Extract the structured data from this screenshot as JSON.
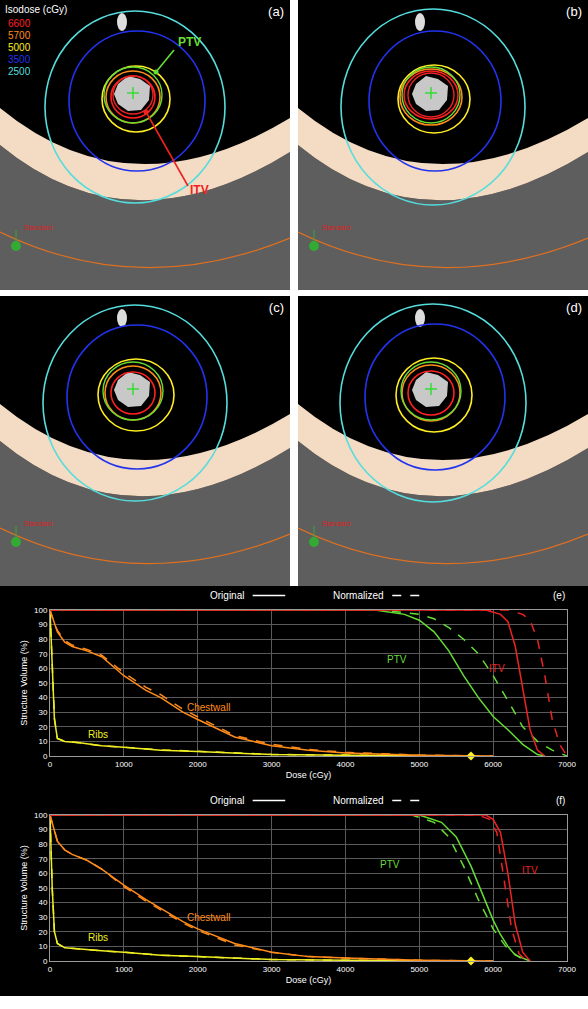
{
  "image_panels": {
    "isodose_legend": {
      "title": "Isodose (cGy)",
      "levels": [
        {
          "value": 6600,
          "color": "#ff2020"
        },
        {
          "value": 5700,
          "color": "#ff8c1a"
        },
        {
          "value": 5000,
          "color": "#ffee22"
        },
        {
          "value": 3500,
          "color": "#2233ee"
        },
        {
          "value": 2500,
          "color": "#55dddd"
        }
      ]
    },
    "panels": [
      {
        "label": "(a)",
        "overlay_label": "Standard",
        "annotations": [
          {
            "text": "PTV",
            "color": "#66dd33"
          },
          {
            "text": "ITV",
            "color": "#ee2222"
          }
        ]
      },
      {
        "label": "(b)",
        "overlay_label": "Standard"
      },
      {
        "label": "(c)",
        "overlay_label": "Standard"
      },
      {
        "label": "(d)",
        "overlay_label": "Standard"
      }
    ]
  },
  "chart_data": [
    {
      "type": "line",
      "panel_label": "(e)",
      "xlabel": "Dose (cGy)",
      "ylabel": "Structure Volume (%)",
      "xlim": [
        0,
        7000
      ],
      "ylim": [
        0,
        100
      ],
      "xticks": [
        0,
        1000,
        2000,
        3000,
        4000,
        5000,
        6000,
        7000
      ],
      "yticks": [
        0,
        10,
        20,
        30,
        40,
        50,
        60,
        70,
        80,
        90,
        100
      ],
      "grid": true,
      "legend": "top",
      "legend_items": [
        {
          "label": "Original",
          "line_style": "solid"
        },
        {
          "label": "Normalized",
          "line_style": "dashed"
        }
      ],
      "series": [
        {
          "name": "Ribs",
          "group": "Original",
          "color": "#eeee22",
          "line_style": "solid",
          "x": [
            0,
            30,
            60,
            100,
            200,
            400,
            700,
            1000,
            1500,
            2000,
            2500,
            3000,
            4000,
            5000,
            5700
          ],
          "values": [
            100,
            60,
            25,
            12,
            10,
            9,
            7,
            6,
            4,
            3,
            2,
            1,
            0.5,
            0.2,
            0
          ]
        },
        {
          "name": "Ribs",
          "group": "Normalized",
          "color": "#eeee22",
          "line_style": "dashed",
          "x": [
            0,
            30,
            60,
            100,
            200,
            400,
            700,
            1000,
            1500,
            2000,
            2500,
            3000,
            4000,
            5000,
            5700
          ],
          "values": [
            100,
            60,
            26,
            12,
            10,
            9,
            7,
            6,
            4.2,
            3.2,
            2.2,
            1.1,
            0.6,
            0.2,
            0
          ]
        },
        {
          "name": "Chestwall",
          "group": "Original",
          "color": "#ff8c1a",
          "line_style": "solid",
          "x": [
            0,
            50,
            100,
            200,
            300,
            500,
            700,
            1000,
            1300,
            1500,
            1800,
            2000,
            2500,
            3000,
            3500,
            4000,
            5000,
            6000
          ],
          "values": [
            100,
            92,
            85,
            78,
            75,
            72,
            68,
            55,
            45,
            40,
            30,
            25,
            13,
            7,
            4,
            2,
            0.5,
            0
          ]
        },
        {
          "name": "Chestwall",
          "group": "Normalized",
          "color": "#ff8c1a",
          "line_style": "dashed",
          "x": [
            0,
            50,
            100,
            200,
            300,
            500,
            700,
            1000,
            1300,
            1500,
            1800,
            2000,
            2500,
            3000,
            3500,
            4000,
            5000,
            6000
          ],
          "values": [
            100,
            92,
            86,
            79,
            76,
            73,
            69,
            57,
            47,
            42,
            32,
            27,
            14,
            8,
            4.5,
            2.5,
            0.6,
            0
          ]
        },
        {
          "name": "PTV",
          "group": "Original",
          "color": "#66dd33",
          "line_style": "solid",
          "x": [
            0,
            4400,
            4800,
            5000,
            5200,
            5400,
            5600,
            5800,
            6000,
            6200,
            6400,
            6600,
            6700
          ],
          "values": [
            100,
            100,
            97,
            93,
            85,
            72,
            55,
            40,
            27,
            18,
            8,
            1,
            0
          ]
        },
        {
          "name": "PTV",
          "group": "Normalized",
          "color": "#66dd33",
          "line_style": "dashed",
          "x": [
            0,
            4500,
            5000,
            5200,
            5400,
            5600,
            5800,
            6000,
            6200,
            6400,
            6600,
            6800,
            7000
          ],
          "values": [
            100,
            100,
            97,
            94,
            88,
            80,
            70,
            55,
            38,
            20,
            10,
            4,
            0
          ]
        },
        {
          "name": "ITV",
          "group": "Original",
          "color": "#ee2222",
          "line_style": "solid",
          "x": [
            0,
            5900,
            6100,
            6200,
            6300,
            6400,
            6500,
            6600,
            6700
          ],
          "values": [
            100,
            100,
            97,
            92,
            75,
            45,
            18,
            4,
            0
          ]
        },
        {
          "name": "ITV",
          "group": "Normalized",
          "color": "#ee2222",
          "line_style": "dashed",
          "x": [
            0,
            6200,
            6400,
            6500,
            6600,
            6700,
            6800,
            6900,
            7000
          ],
          "values": [
            100,
            100,
            97,
            93,
            80,
            55,
            25,
            8,
            0
          ]
        }
      ],
      "annotations": [
        {
          "text": "Ribs",
          "x": 650,
          "y": 15,
          "color": "#eeee22"
        },
        {
          "text": "Chestwall",
          "x": 2150,
          "y": 33,
          "color": "#ff8c1a"
        },
        {
          "text": "PTV",
          "x": 4700,
          "y": 66,
          "color": "#66dd33"
        },
        {
          "text": "ITV",
          "x": 6050,
          "y": 60,
          "color": "#ee2222"
        }
      ],
      "reference_point": {
        "x": 5700,
        "y": 0,
        "color": "#ffee22",
        "marker": "diamond"
      }
    },
    {
      "type": "line",
      "panel_label": "(f)",
      "xlabel": "Dose (cGy)",
      "ylabel": "Structure Volume (%)",
      "xlim": [
        0,
        7000
      ],
      "ylim": [
        0,
        100
      ],
      "xticks": [
        0,
        1000,
        2000,
        3000,
        4000,
        5000,
        6000,
        7000
      ],
      "yticks": [
        0,
        10,
        20,
        30,
        40,
        50,
        60,
        70,
        80,
        90,
        100
      ],
      "grid": true,
      "legend": "top",
      "legend_items": [
        {
          "label": "Original",
          "line_style": "solid"
        },
        {
          "label": "Normalized",
          "line_style": "dashed"
        }
      ],
      "series": [
        {
          "name": "Ribs",
          "group": "Original",
          "color": "#eeee22",
          "line_style": "solid",
          "x": [
            0,
            30,
            60,
            100,
            200,
            400,
            700,
            1000,
            1500,
            2000,
            2500,
            3000,
            4000,
            5000,
            5700
          ],
          "values": [
            100,
            50,
            20,
            12,
            9,
            8,
            7,
            6,
            4,
            3,
            2,
            1,
            0.5,
            0.2,
            0
          ]
        },
        {
          "name": "Ribs",
          "group": "Normalized",
          "color": "#eeee22",
          "line_style": "dashed",
          "x": [
            0,
            30,
            60,
            100,
            200,
            400,
            700,
            1000,
            1500,
            2000,
            2500,
            3000,
            4000,
            5000,
            5700
          ],
          "values": [
            100,
            50,
            20,
            12,
            9,
            8,
            7,
            6,
            4,
            3,
            2,
            1,
            0.5,
            0.2,
            0
          ]
        },
        {
          "name": "Chestwall",
          "group": "Original",
          "color": "#ff8c1a",
          "line_style": "solid",
          "x": [
            0,
            50,
            100,
            200,
            300,
            500,
            700,
            1000,
            1300,
            1500,
            1800,
            2000,
            2500,
            3000,
            3500,
            4000,
            5000,
            6000
          ],
          "values": [
            100,
            90,
            82,
            76,
            73,
            69,
            63,
            52,
            42,
            36,
            27,
            22,
            12,
            6,
            3,
            2,
            0.5,
            0
          ]
        },
        {
          "name": "Chestwall",
          "group": "Normalized",
          "color": "#ff8c1a",
          "line_style": "dashed",
          "x": [
            0,
            50,
            100,
            200,
            300,
            500,
            700,
            1000,
            1300,
            1500,
            1800,
            2000,
            2500,
            3000,
            3500,
            4000,
            5000,
            6000
          ],
          "values": [
            100,
            90,
            82,
            76,
            73,
            69,
            63,
            51,
            41,
            35,
            26,
            21,
            11,
            6,
            3,
            2,
            0.5,
            0
          ]
        },
        {
          "name": "PTV",
          "group": "Original",
          "color": "#66dd33",
          "line_style": "solid",
          "x": [
            0,
            5000,
            5300,
            5500,
            5700,
            5900,
            6000,
            6100,
            6200,
            6300,
            6500
          ],
          "values": [
            100,
            100,
            95,
            85,
            65,
            40,
            28,
            18,
            10,
            4,
            0
          ]
        },
        {
          "name": "PTV",
          "group": "Normalized",
          "color": "#66dd33",
          "line_style": "dashed",
          "x": [
            0,
            4900,
            5200,
            5400,
            5600,
            5800,
            6000,
            6200,
            6400,
            6500
          ],
          "values": [
            100,
            100,
            95,
            85,
            65,
            42,
            22,
            8,
            1,
            0
          ]
        },
        {
          "name": "ITV",
          "group": "Original",
          "color": "#ee2222",
          "line_style": "solid",
          "x": [
            0,
            5900,
            6000,
            6100,
            6200,
            6300,
            6400,
            6500
          ],
          "values": [
            100,
            100,
            97,
            88,
            60,
            25,
            6,
            0
          ]
        },
        {
          "name": "ITV",
          "group": "Normalized",
          "color": "#ee2222",
          "line_style": "dashed",
          "x": [
            0,
            5800,
            5950,
            6050,
            6150,
            6250,
            6350,
            6450
          ],
          "values": [
            100,
            100,
            97,
            88,
            55,
            22,
            5,
            0
          ]
        }
      ],
      "annotations": [
        {
          "text": "Ribs",
          "x": 650,
          "y": 16,
          "color": "#eeee22"
        },
        {
          "text": "Chestwall",
          "x": 2150,
          "y": 30,
          "color": "#ff8c1a"
        },
        {
          "text": "PTV",
          "x": 4600,
          "y": 66,
          "color": "#66dd33"
        },
        {
          "text": "ITV",
          "x": 6500,
          "y": 62,
          "color": "#ee2222"
        }
      ],
      "reference_point": {
        "x": 5700,
        "y": 0,
        "color": "#ffee22",
        "marker": "diamond"
      }
    }
  ]
}
